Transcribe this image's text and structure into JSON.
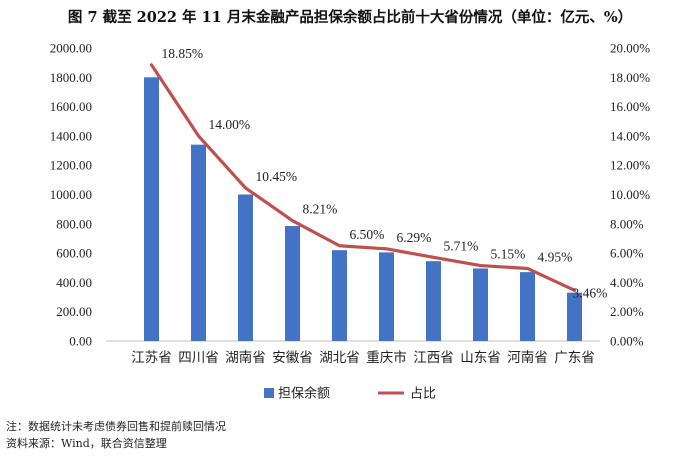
{
  "chart_data": {
    "type": "bar",
    "title": "图 7   截至 2022 年 11 月末金融产品担保余额占比前十大省份情况（单位：亿元、%）",
    "categories": [
      "江苏省",
      "四川省",
      "湖南省",
      "安徽省",
      "湖北省",
      "重庆市",
      "江西省",
      "山东省",
      "河南省",
      "广东省"
    ],
    "series": [
      {
        "name": "担保余额",
        "type": "bar",
        "axis": "left",
        "color": "#4472C4",
        "values": [
          1800,
          1340,
          1000,
          785,
          620,
          605,
          545,
          495,
          470,
          330
        ]
      },
      {
        "name": "占比",
        "type": "line",
        "axis": "right",
        "color": "#C0504D",
        "values": [
          18.85,
          14.0,
          10.45,
          8.21,
          6.5,
          6.29,
          5.71,
          5.15,
          4.95,
          3.46
        ],
        "labels": [
          "18.85%",
          "14.00%",
          "10.45%",
          "8.21%",
          "6.50%",
          "6.29%",
          "5.71%",
          "5.15%",
          "4.95%",
          "3.46%"
        ]
      }
    ],
    "y_left": {
      "min": 0,
      "max": 2000,
      "step": 200,
      "tick_labels": [
        "0.00",
        "200.00",
        "400.00",
        "600.00",
        "800.00",
        "1000.00",
        "1200.00",
        "1400.00",
        "1600.00",
        "1800.00",
        "2000.00"
      ]
    },
    "y_right": {
      "min": 0,
      "max": 20,
      "step": 2,
      "tick_labels": [
        "0.00%",
        "2.00%",
        "4.00%",
        "6.00%",
        "8.00%",
        "10.00%",
        "12.00%",
        "14.00%",
        "16.00%",
        "18.00%",
        "20.00%"
      ]
    },
    "grid": false,
    "legend": "bottom-center"
  },
  "notes": {
    "note": "注：数据统计未考虑债券回售和提前赎回情况",
    "source": "资料来源：Wind，联合资信整理"
  }
}
